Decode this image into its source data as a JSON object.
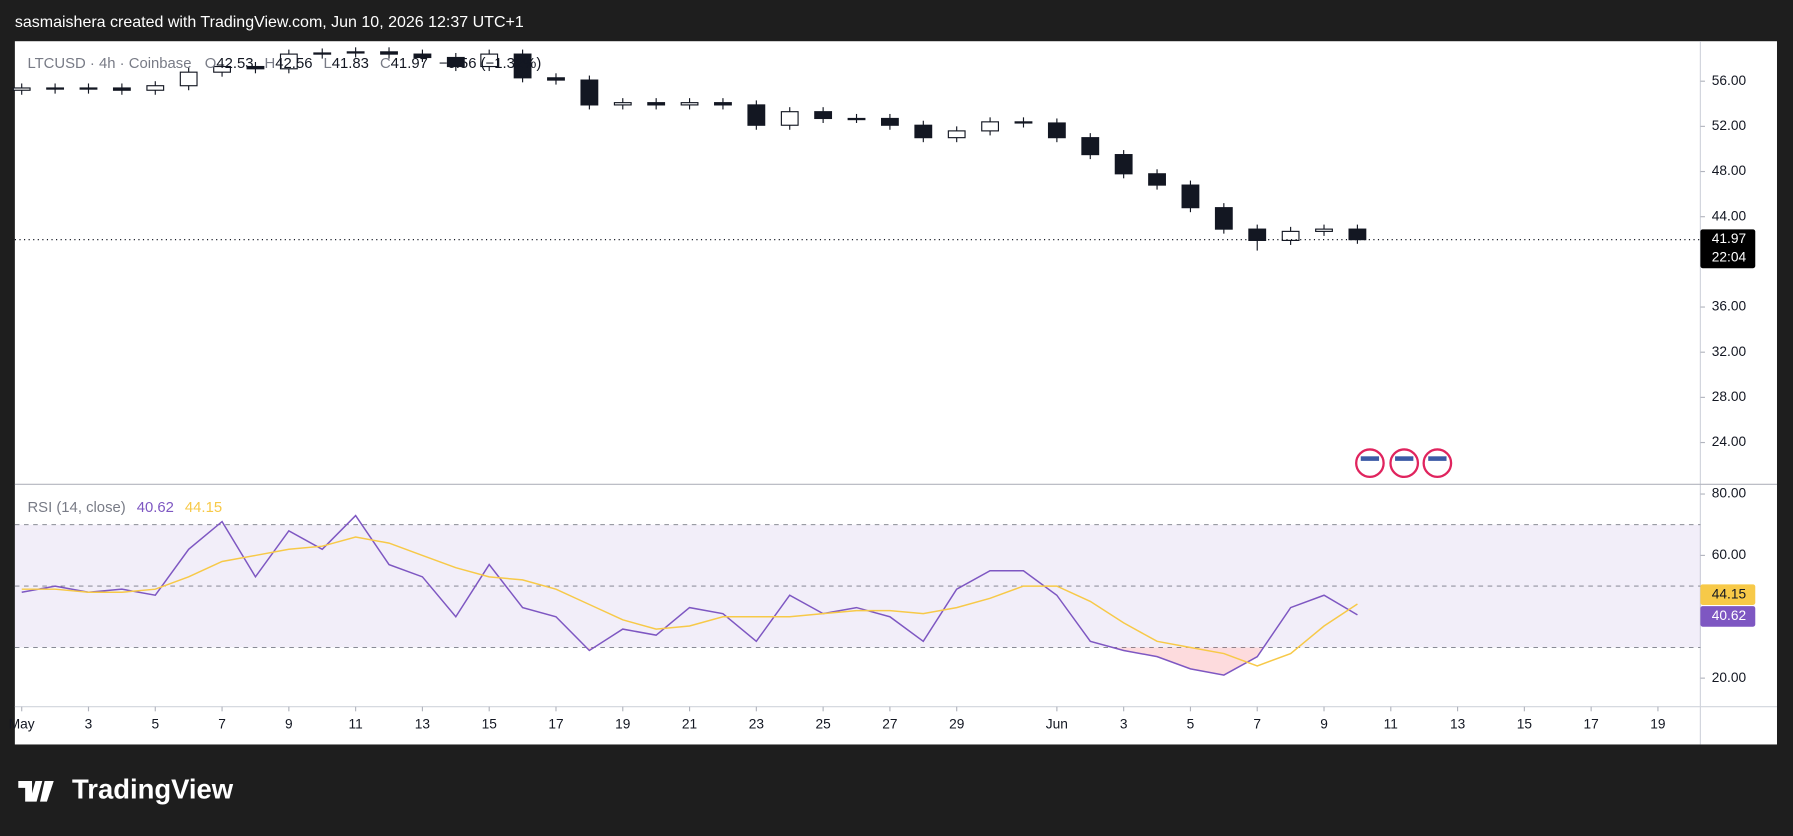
{
  "header": {
    "caption": "sasmaishera created with TradingView.com, Jun 10, 2026 12:37 UTC+1"
  },
  "chart_data": [
    {
      "type": "candlestick",
      "title": "LTCUSD · 4h · Coinbase",
      "legend": {
        "o_label": "O",
        "o": 42.53,
        "h_label": "H",
        "h": 42.56,
        "l_label": "L",
        "l": 41.83,
        "c_label": "C",
        "c": 41.97,
        "change": "−0.56 (−1.32%)"
      },
      "countdown": "22:04",
      "x": [
        "2026-05-01",
        "2026-05-02",
        "2026-05-03",
        "2026-05-04",
        "2026-05-05",
        "2026-05-06",
        "2026-05-07",
        "2026-05-08",
        "2026-05-09",
        "2026-05-10",
        "2026-05-11",
        "2026-05-12",
        "2026-05-13",
        "2026-05-14",
        "2026-05-15",
        "2026-05-16",
        "2026-05-17",
        "2026-05-18",
        "2026-05-19",
        "2026-05-20",
        "2026-05-21",
        "2026-05-22",
        "2026-05-23",
        "2026-05-24",
        "2026-05-25",
        "2026-05-26",
        "2026-05-27",
        "2026-05-28",
        "2026-05-29",
        "2026-05-30",
        "2026-05-31",
        "2026-06-01",
        "2026-06-02",
        "2026-06-03",
        "2026-06-04",
        "2026-06-05",
        "2026-06-06",
        "2026-06-07",
        "2026-06-08",
        "2026-06-09",
        "2026-06-10"
      ],
      "open": [
        55.2,
        55.4,
        55.3,
        55.4,
        55.2,
        55.6,
        56.8,
        57.3,
        57.1,
        58.4,
        58.5,
        58.6,
        58.4,
        58.1,
        57.3,
        58.4,
        56.3,
        56.1,
        53.9,
        54.1,
        53.9,
        54.1,
        53.9,
        52.1,
        53.3,
        52.7,
        52.7,
        52.1,
        51.0,
        51.6,
        52.4,
        52.3,
        51.0,
        49.5,
        47.8,
        46.8,
        44.8,
        42.9,
        41.9,
        42.7,
        42.9
      ],
      "high": [
        55.8,
        55.8,
        55.8,
        55.8,
        56.0,
        57.2,
        57.7,
        57.7,
        58.8,
        58.9,
        59.0,
        59.0,
        58.8,
        58.5,
        58.8,
        58.8,
        56.7,
        56.5,
        54.5,
        54.5,
        54.5,
        54.5,
        54.3,
        53.7,
        53.7,
        53.1,
        53.1,
        52.5,
        52.0,
        52.8,
        52.8,
        52.7,
        51.4,
        49.9,
        48.2,
        47.2,
        45.2,
        43.3,
        43.1,
        43.3,
        43.3
      ],
      "low": [
        54.8,
        54.9,
        54.9,
        54.8,
        54.8,
        55.2,
        56.4,
        56.7,
        56.7,
        58.0,
        58.1,
        58.0,
        57.7,
        56.9,
        56.9,
        55.9,
        55.7,
        53.5,
        53.5,
        53.5,
        53.5,
        53.5,
        51.7,
        51.7,
        52.3,
        52.3,
        51.7,
        50.6,
        50.6,
        51.2,
        51.9,
        50.6,
        49.1,
        47.4,
        46.4,
        44.4,
        42.5,
        41.0,
        41.5,
        42.3,
        41.6
      ],
      "close": [
        55.4,
        55.3,
        55.4,
        55.2,
        55.6,
        56.8,
        57.3,
        57.1,
        58.4,
        58.5,
        58.6,
        58.4,
        58.1,
        57.3,
        58.4,
        56.3,
        56.1,
        53.9,
        54.1,
        53.9,
        54.1,
        53.9,
        52.1,
        53.3,
        52.7,
        52.7,
        52.1,
        51.0,
        51.6,
        52.4,
        52.3,
        51.0,
        49.5,
        47.8,
        46.8,
        44.8,
        42.9,
        41.9,
        42.7,
        42.9,
        41.97
      ],
      "up_color": "#ffffff",
      "down_color": "#131722",
      "xlim": [
        "2026-04-30T19:05Z",
        "2026-06-20T06:30Z"
      ],
      "ylim": [
        20.35,
        59.44
      ],
      "yticks": [
        {
          "value": 24,
          "label": "24.00"
        },
        {
          "value": 28,
          "label": "28.00"
        },
        {
          "value": 32,
          "label": "32.00"
        },
        {
          "value": 36,
          "label": "36.00"
        },
        {
          "value": 44,
          "label": "44.00"
        },
        {
          "value": 48,
          "label": "48.00"
        },
        {
          "value": 52,
          "label": "52.00"
        },
        {
          "value": 56,
          "label": "56.00"
        }
      ]
    },
    {
      "type": "line",
      "title": "RSI (14, close)",
      "x": [
        "2026-05-01",
        "2026-05-02",
        "2026-05-03",
        "2026-05-04",
        "2026-05-05",
        "2026-05-06",
        "2026-05-07",
        "2026-05-08",
        "2026-05-09",
        "2026-05-10",
        "2026-05-11",
        "2026-05-12",
        "2026-05-13",
        "2026-05-14",
        "2026-05-15",
        "2026-05-16",
        "2026-05-17",
        "2026-05-18",
        "2026-05-19",
        "2026-05-20",
        "2026-05-21",
        "2026-05-22",
        "2026-05-23",
        "2026-05-24",
        "2026-05-25",
        "2026-05-26",
        "2026-05-27",
        "2026-05-28",
        "2026-05-29",
        "2026-05-30",
        "2026-05-31",
        "2026-06-01",
        "2026-06-02",
        "2026-06-03",
        "2026-06-04",
        "2026-06-05",
        "2026-06-06",
        "2026-06-07",
        "2026-06-08",
        "2026-06-09",
        "2026-06-10"
      ],
      "series": [
        {
          "color": "#7e57c2",
          "values": [
            48,
            50,
            48,
            49,
            47,
            62,
            71,
            53,
            68,
            62,
            73,
            57,
            53,
            40,
            57,
            43,
            40,
            29,
            36,
            34,
            43,
            41,
            32,
            47,
            41,
            43,
            40,
            32,
            49,
            55,
            55,
            47,
            32,
            29,
            27,
            23,
            21,
            27,
            43,
            47,
            40.62
          ]
        },
        {
          "color": "#f7c948",
          "values": [
            49,
            49,
            48,
            48,
            49,
            53,
            58,
            60,
            62,
            63,
            66,
            64,
            60,
            56,
            53,
            52,
            49,
            44,
            39,
            36,
            37,
            40,
            40,
            40,
            41,
            42,
            42,
            41,
            43,
            46,
            50,
            50,
            45,
            38,
            32,
            30,
            28,
            24,
            28,
            37,
            44.15
          ]
        }
      ],
      "bands": [
        70,
        50,
        30
      ],
      "xlim": [
        "2026-04-30T19:05Z",
        "2026-06-20T06:30Z"
      ],
      "ylim": [
        10.68,
        82.98
      ],
      "yticks": [
        {
          "value": 20,
          "label": "20.00"
        },
        {
          "value": 60,
          "label": "60.00"
        },
        {
          "value": 80,
          "label": "80.00"
        }
      ],
      "xticks": [
        {
          "value": "2026-05-01",
          "label": "May"
        },
        {
          "value": "2026-05-03",
          "label": "3"
        },
        {
          "value": "2026-05-05",
          "label": "5"
        },
        {
          "value": "2026-05-07",
          "label": "7"
        },
        {
          "value": "2026-05-09",
          "label": "9"
        },
        {
          "value": "2026-05-11",
          "label": "11"
        },
        {
          "value": "2026-05-13",
          "label": "13"
        },
        {
          "value": "2026-05-15",
          "label": "15"
        },
        {
          "value": "2026-05-17",
          "label": "17"
        },
        {
          "value": "2026-05-19",
          "label": "19"
        },
        {
          "value": "2026-05-21",
          "label": "21"
        },
        {
          "value": "2026-05-23",
          "label": "23"
        },
        {
          "value": "2026-05-25",
          "label": "25"
        },
        {
          "value": "2026-05-27",
          "label": "27"
        },
        {
          "value": "2026-05-29",
          "label": "29"
        },
        {
          "value": "2026-06-01",
          "label": "Jun"
        },
        {
          "value": "2026-06-03",
          "label": "3"
        },
        {
          "value": "2026-06-05",
          "label": "5"
        },
        {
          "value": "2026-06-07",
          "label": "7"
        },
        {
          "value": "2026-06-09",
          "label": "9"
        },
        {
          "value": "2026-06-11",
          "label": "11"
        },
        {
          "value": "2026-06-13",
          "label": "13"
        },
        {
          "value": "2026-06-15",
          "label": "15"
        },
        {
          "value": "2026-06-17",
          "label": "17"
        },
        {
          "value": "2026-06-19",
          "label": "19"
        }
      ]
    }
  ],
  "footer": {
    "logo": "TradingView"
  }
}
